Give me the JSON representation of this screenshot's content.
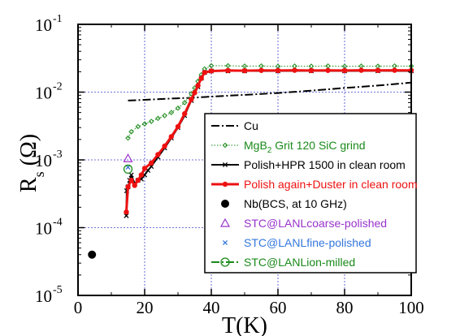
{
  "chart_data": {
    "type": "scatter",
    "title": "",
    "xlabel": "T(K)",
    "ylabel": {
      "main": "R",
      "sub": "s",
      "rest": " (Ω)"
    },
    "xlim": [
      0,
      100
    ],
    "ylim_log10": [
      -5,
      -1
    ],
    "yscale": "log",
    "grid": true,
    "legend_position": "lower-right",
    "x_ticks": [
      "0",
      "20",
      "40",
      "60",
      "80",
      "100"
    ],
    "x_tick_values": [
      0,
      20,
      40,
      60,
      80,
      100
    ],
    "y_ticks": [
      {
        "base": "10",
        "exp": "-5",
        "value": 1e-05
      },
      {
        "base": "10",
        "exp": "-4",
        "value": 0.0001
      },
      {
        "base": "10",
        "exp": "-3",
        "value": 0.001
      },
      {
        "base": "10",
        "exp": "-2",
        "value": 0.01
      },
      {
        "base": "10",
        "exp": "-1",
        "value": 0.1
      }
    ],
    "series": [
      {
        "name": "Cu",
        "legend_sub": "",
        "legend_rest": "",
        "color": "#000000",
        "style": "dash-dot",
        "marker": "none",
        "x": [
          15,
          20,
          25,
          30,
          35,
          40,
          50,
          60,
          70,
          80,
          90,
          100
        ],
        "y": [
          0.0075,
          0.0077,
          0.0079,
          0.0081,
          0.0083,
          0.0086,
          0.0091,
          0.0097,
          0.0105,
          0.0115,
          0.0125,
          0.0138
        ]
      },
      {
        "name": "MgB",
        "legend_sub": "2",
        "legend_rest": "  Grit 120 SiC grind",
        "color": "#1a8a1a",
        "style": "dotted",
        "marker": "diamond",
        "x": [
          15,
          16,
          18,
          20,
          22,
          24,
          26,
          28,
          30,
          32,
          34,
          35,
          36,
          37,
          38,
          40,
          45,
          50,
          55,
          60,
          65,
          70,
          75,
          80,
          85,
          90,
          95,
          100
        ],
        "y": [
          0.0021,
          0.0026,
          0.0031,
          0.0034,
          0.0037,
          0.0041,
          0.0045,
          0.005,
          0.0058,
          0.007,
          0.0095,
          0.0115,
          0.0145,
          0.018,
          0.022,
          0.0245,
          0.0245,
          0.0242,
          0.0243,
          0.024,
          0.0242,
          0.0241,
          0.0243,
          0.024,
          0.0242,
          0.0241,
          0.0243,
          0.0242
        ]
      },
      {
        "name": "Polish+HPR 1500 in clean room",
        "legend_sub": "",
        "legend_rest": "",
        "color": "#000000",
        "style": "solid",
        "marker": "x",
        "x": [
          14.5,
          14.6,
          15,
          15.5,
          16,
          17,
          18,
          19,
          20,
          21,
          22,
          24,
          26,
          28,
          30,
          32,
          34,
          36,
          37,
          38,
          40,
          45,
          50,
          60,
          70,
          80,
          90,
          100
        ],
        "y": [
          0.00015,
          0.00035,
          0.0004,
          0.0005,
          0.0006,
          0.00045,
          0.0005,
          0.00052,
          0.0006,
          0.0007,
          0.0008,
          0.0011,
          0.0015,
          0.0021,
          0.003,
          0.0045,
          0.0075,
          0.012,
          0.016,
          0.0195,
          0.0205,
          0.0205,
          0.0205,
          0.0205,
          0.0206,
          0.0205,
          0.0206,
          0.0205
        ]
      },
      {
        "name": "Polish again+Duster in clean room",
        "legend_sub": "",
        "legend_rest": "",
        "color": "#ee1111",
        "style": "solid",
        "marker": "dot",
        "x": [
          14.5,
          15,
          16,
          17,
          18,
          19,
          20,
          22,
          24,
          26,
          28,
          30,
          32,
          34,
          35,
          36,
          37,
          38,
          40,
          45,
          50,
          55,
          60,
          65,
          70,
          75,
          80,
          85,
          90,
          95,
          100
        ],
        "y": [
          0.00017,
          0.0004,
          0.0005,
          0.00042,
          0.0005,
          0.0006,
          0.00075,
          0.0009,
          0.0012,
          0.0016,
          0.0022,
          0.0031,
          0.0048,
          0.0078,
          0.0098,
          0.0125,
          0.016,
          0.0195,
          0.0205,
          0.0208,
          0.0207,
          0.0209,
          0.0208,
          0.021,
          0.0208,
          0.0209,
          0.0208,
          0.021,
          0.0209,
          0.021,
          0.0209
        ]
      },
      {
        "name": "Nb(BCS, at 10 GHz)",
        "legend_sub": "",
        "legend_rest": "",
        "color": "#000000",
        "style": "none",
        "marker": "filled-circle",
        "x": [
          4.2
        ],
        "y": [
          4e-05
        ]
      },
      {
        "name": "STC@LANLcoarse-polished",
        "legend_sub": "",
        "legend_rest": "",
        "color": "#9933cc",
        "style": "none",
        "marker": "triangle",
        "x": [
          15
        ],
        "y": [
          0.00105
        ]
      },
      {
        "name": "STC@LANLfine-polished",
        "legend_sub": "",
        "legend_rest": "",
        "color": "#3377dd",
        "style": "none",
        "marker": "x",
        "x": [
          15
        ],
        "y": [
          0.00078
        ]
      },
      {
        "name": "STC@LANLion-milled",
        "legend_sub": "",
        "legend_rest": "",
        "color": "#1a8a1a",
        "style": "dash-dot",
        "marker": "open-circle",
        "x": [
          15
        ],
        "y": [
          0.00073
        ]
      }
    ]
  }
}
